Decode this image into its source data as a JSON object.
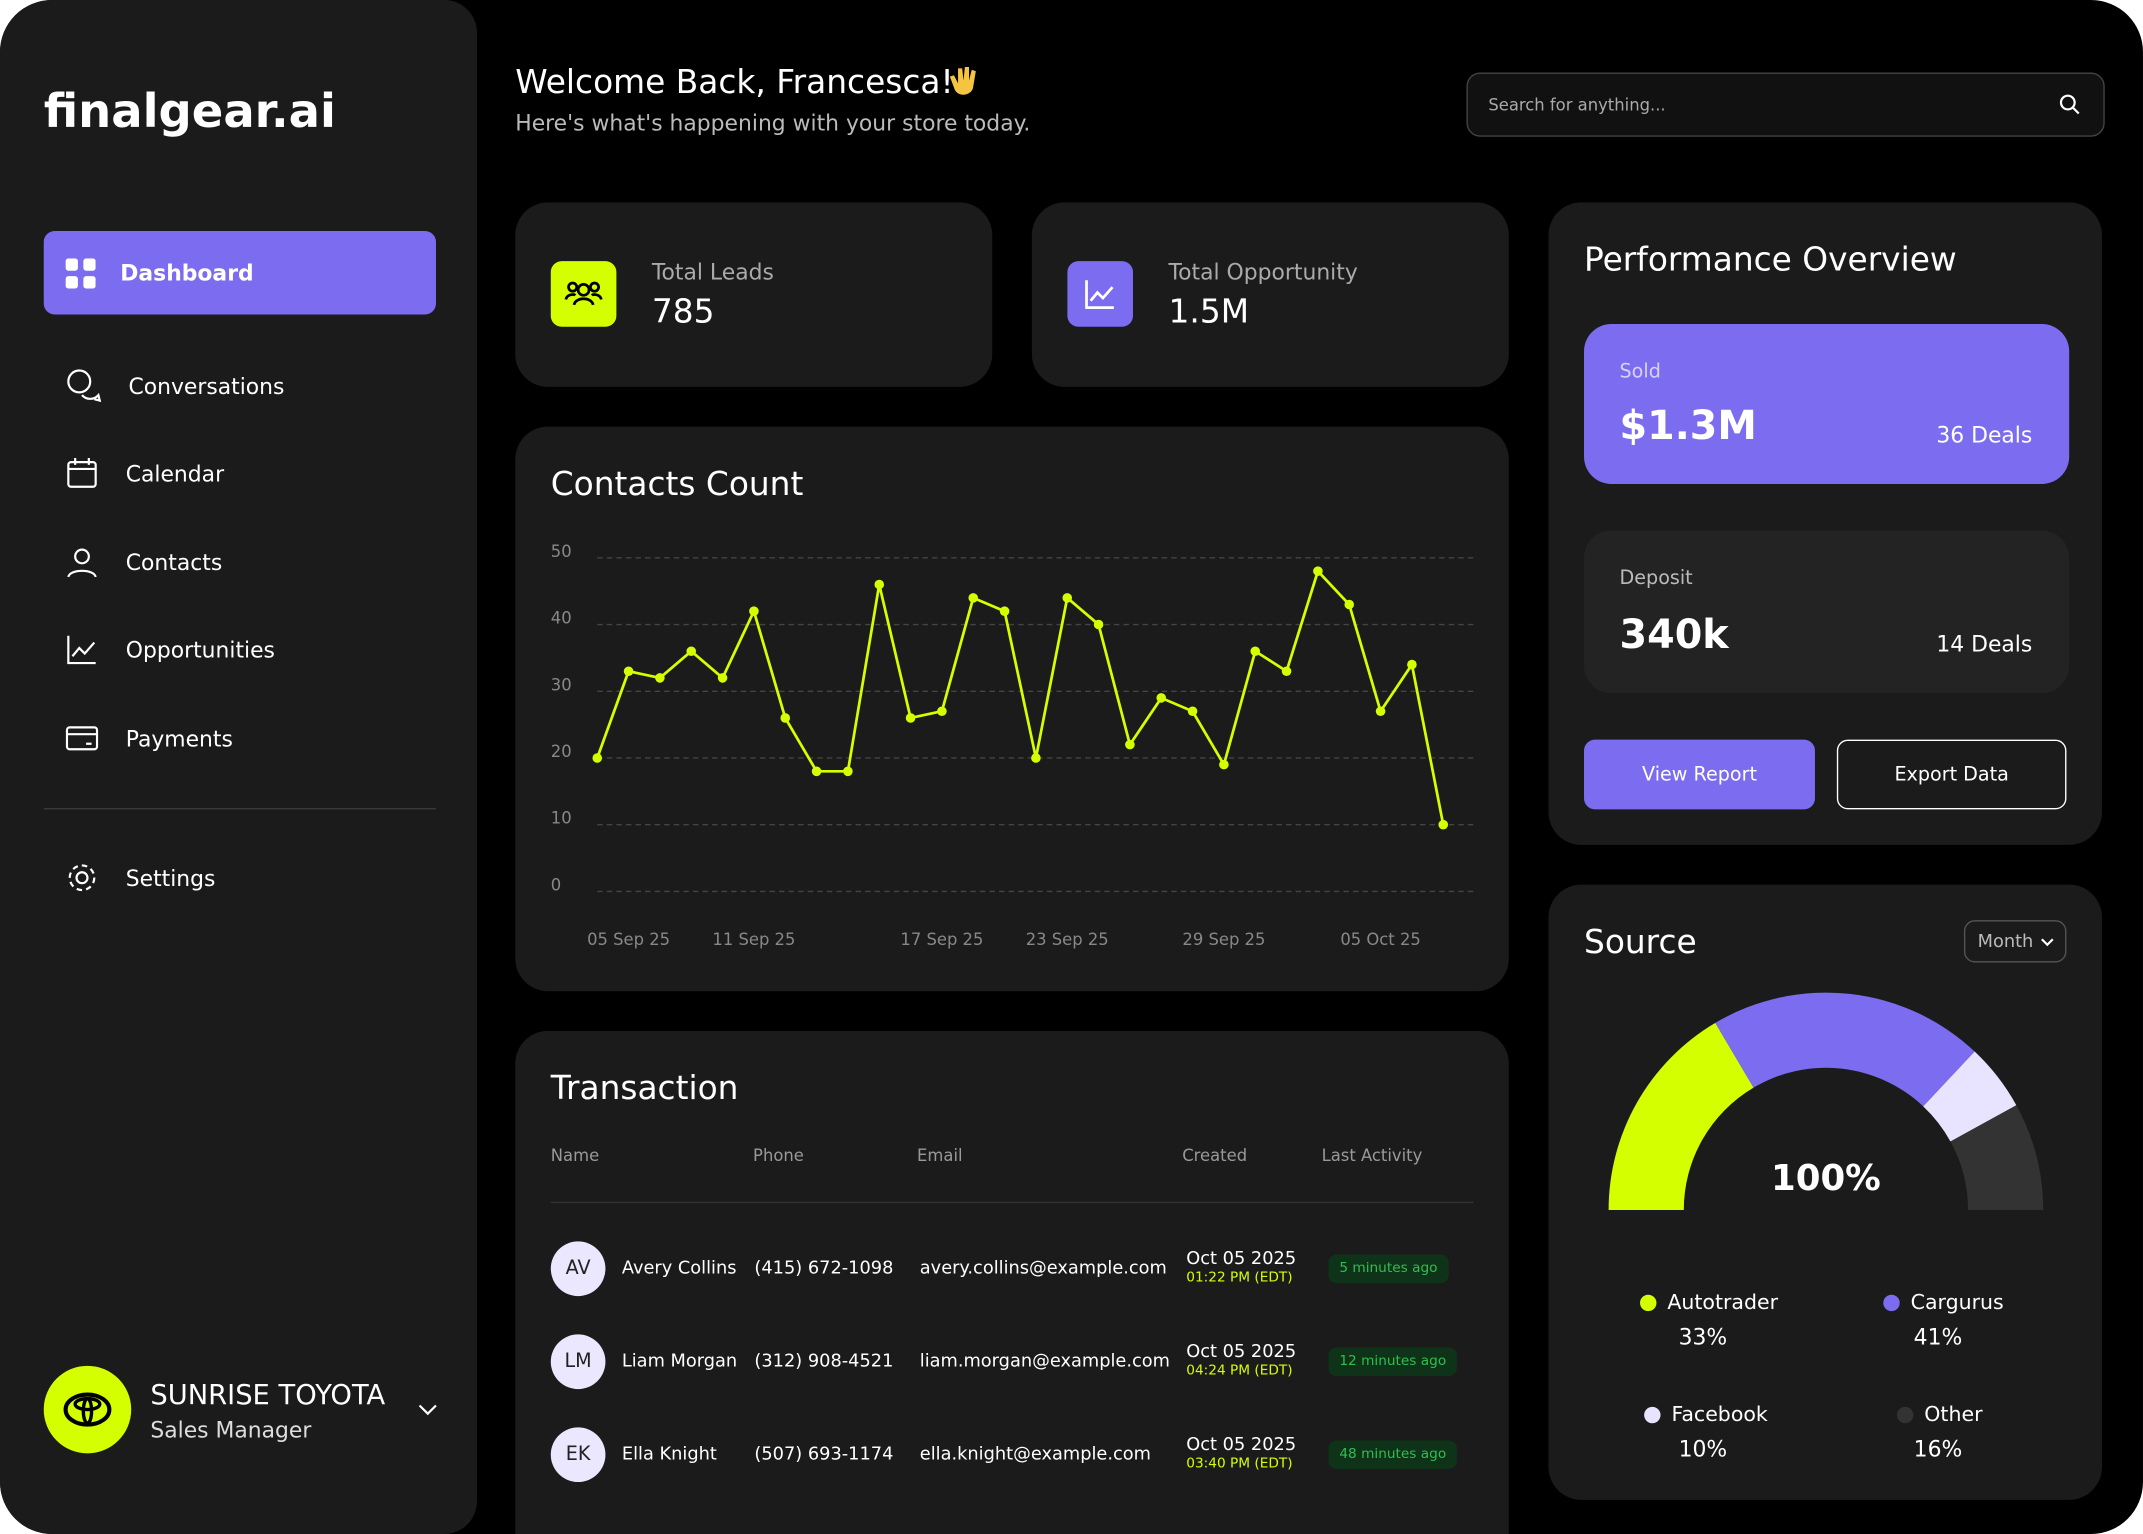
{
  "sidebar": {
    "logo": "finalgear.ai",
    "nav": [
      "Dashboard",
      "Conversations",
      "Calendar",
      "Contacts",
      "Opportunities",
      "Payments"
    ],
    "settings": "Settings",
    "account": {
      "name": "SUNRISE TOYOTA",
      "role": "Sales Manager"
    }
  },
  "header": {
    "title": "Welcome Back, Francesca!",
    "subtitle": "Here's what's happening with your store today.",
    "search_placeholder": "Search for anything..."
  },
  "stats": [
    {
      "label": "Total Leads",
      "value": 785
    },
    {
      "label": "Total Opportunity",
      "value": "1.5M"
    }
  ],
  "chart_data": [
    {
      "type": "line",
      "title": "Contacts Count",
      "categories": [
        null,
        "05 Sep 25",
        null,
        null,
        null,
        "11 Sep 25",
        null,
        null,
        null,
        null,
        null,
        "17 Sep 25",
        null,
        null,
        null,
        "23 Sep 25",
        null,
        null,
        null,
        null,
        "29 Sep 25",
        null,
        null,
        null,
        null,
        "05 Oct 25",
        null,
        null
      ],
      "values": [
        20,
        33,
        32,
        36,
        32,
        42,
        26,
        18,
        18,
        46,
        26,
        27,
        44,
        42,
        20,
        44,
        40,
        22,
        29,
        27,
        19,
        36,
        33,
        48,
        43,
        27,
        34,
        10
      ],
      "color": "#d4ff00",
      "ylim": [
        0,
        50
      ],
      "yticks": [
        0,
        10,
        20,
        30,
        40,
        50
      ],
      "grid": true
    },
    {
      "type": "gauge",
      "title": "Source",
      "period": "Month",
      "center_label": "100%",
      "categories": [
        "Autotrader",
        "Cargurus",
        "Facebook",
        "Other"
      ],
      "values": [
        33,
        41,
        10,
        16
      ],
      "value_labels": [
        "33%",
        "41%",
        "10%",
        "16%"
      ],
      "colors": [
        "#d4ff00",
        "#7b6cf0",
        "#e8e4ff",
        "#333333"
      ]
    }
  ],
  "performance": {
    "title": "Performance Overview",
    "cards": [
      {
        "label": "Sold",
        "value": "$1.3M",
        "deals": "36 Deals"
      },
      {
        "label": "Deposit",
        "value": "340k",
        "deals": "14 Deals"
      }
    ],
    "buttons": [
      "View Report",
      "Export Data"
    ]
  },
  "transaction": {
    "title": "Transaction",
    "columns": [
      "Name",
      "Phone",
      "Email",
      "Created",
      "Last Activity"
    ],
    "rows": [
      {
        "initials": "AV",
        "name": "Avery Collins",
        "phone": "(415) 672-1098",
        "email": "avery.collins@example.com",
        "date": "Oct 05 2025",
        "time": "01:22 PM (EDT)",
        "activity": "5 minutes ago"
      },
      {
        "initials": "LM",
        "name": "Liam Morgan",
        "phone": "(312) 908-4521",
        "email": "liam.morgan@example.com",
        "date": "Oct 05 2025",
        "time": "04:24 PM (EDT)",
        "activity": "12 minutes ago"
      },
      {
        "initials": "EK",
        "name": "Ella Knight",
        "phone": "(507) 693-1174",
        "email": "ella.knight@example.com",
        "date": "Oct 05 2025",
        "time": "03:40 PM (EDT)",
        "activity": "48 minutes ago"
      }
    ]
  }
}
